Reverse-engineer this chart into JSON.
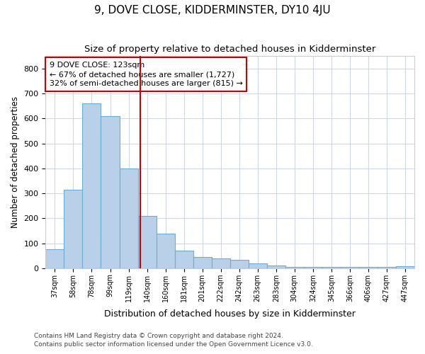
{
  "title": "9, DOVE CLOSE, KIDDERMINSTER, DY10 4JU",
  "subtitle": "Size of property relative to detached houses in Kidderminster",
  "xlabel": "Distribution of detached houses by size in Kidderminster",
  "ylabel": "Number of detached properties",
  "categories": [
    "37sqm",
    "58sqm",
    "78sqm",
    "99sqm",
    "119sqm",
    "140sqm",
    "160sqm",
    "181sqm",
    "201sqm",
    "222sqm",
    "242sqm",
    "263sqm",
    "283sqm",
    "304sqm",
    "324sqm",
    "345sqm",
    "366sqm",
    "406sqm",
    "427sqm",
    "447sqm"
  ],
  "values": [
    75,
    315,
    660,
    610,
    400,
    210,
    138,
    70,
    45,
    40,
    33,
    18,
    10,
    5,
    5,
    5,
    5,
    5,
    5,
    8
  ],
  "bar_color": "#b8d0e8",
  "bar_edge_color": "#6aaed6",
  "vline_x": 4.62,
  "vline_color": "#cc0000",
  "annotation_line1": "9 DOVE CLOSE: 123sqm",
  "annotation_line2": "← 67% of detached houses are smaller (1,727)",
  "annotation_line3": "32% of semi-detached houses are larger (815) →",
  "annotation_box_color": "white",
  "annotation_box_edge_color": "#cc0000",
  "annotation_fontsize": 8.0,
  "ylim": [
    0,
    850
  ],
  "yticks": [
    0,
    100,
    200,
    300,
    400,
    500,
    600,
    700,
    800
  ],
  "title_fontsize": 11,
  "subtitle_fontsize": 9.5,
  "xlabel_fontsize": 9,
  "ylabel_fontsize": 8.5,
  "footer_line1": "Contains HM Land Registry data © Crown copyright and database right 2024.",
  "footer_line2": "Contains public sector information licensed under the Open Government Licence v3.0.",
  "background_color": "#ffffff",
  "plot_bg_color": "#ffffff",
  "grid_color": "#d0d8e8"
}
